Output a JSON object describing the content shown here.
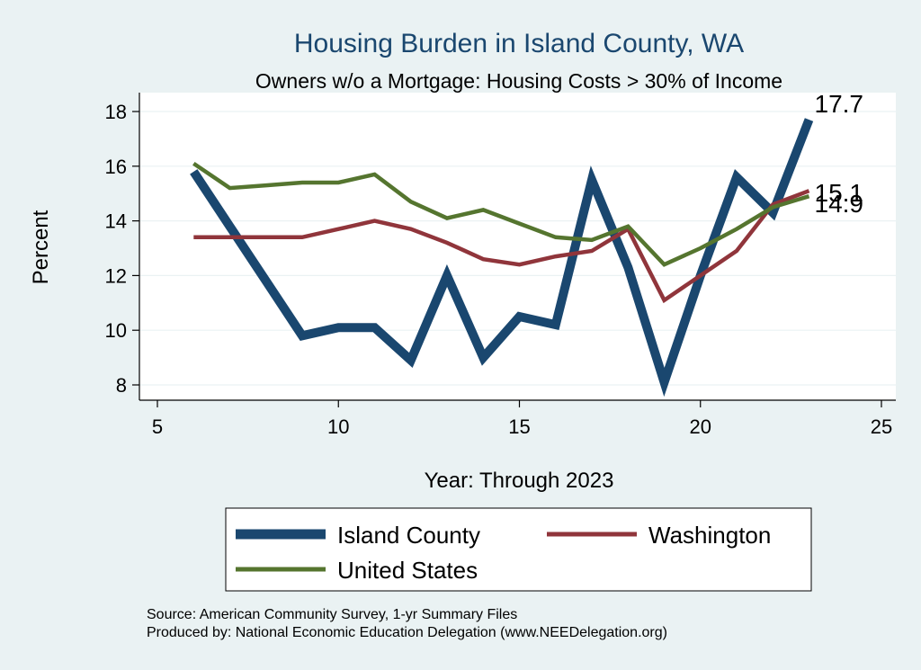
{
  "colors": {
    "background": "#eaf2f3",
    "plot_background": "#ffffff",
    "grid": "#eaf2f3",
    "title": "#1a476f"
  },
  "chart_data": {
    "type": "line",
    "title": "Housing Burden in Island County, WA",
    "subtitle": "Owners w/o a Mortgage: Housing Costs > 30% of Income",
    "xlabel": "Year: Through 2023",
    "ylabel": "Percent",
    "xlim": [
      5,
      25
    ],
    "ylim": [
      7.5,
      18.7
    ],
    "xticks": [
      5,
      10,
      15,
      20,
      25
    ],
    "yticks": [
      8,
      10,
      12,
      14,
      16,
      18
    ],
    "grid": true,
    "legend_position": "bottom",
    "series": [
      {
        "name": "Island County",
        "color": "#1a476f",
        "width": "thick",
        "x": [
          6,
          7,
          8,
          9,
          10,
          11,
          12,
          13,
          14,
          15,
          16,
          17,
          18,
          19,
          20,
          21,
          22,
          23
        ],
        "values": [
          15.8,
          13.8,
          11.8,
          9.8,
          10.1,
          10.1,
          8.9,
          12.0,
          9.0,
          10.5,
          10.2,
          15.5,
          12.3,
          8.1,
          12.0,
          15.6,
          14.3,
          17.7
        ],
        "end_label": "17.7"
      },
      {
        "name": "Washington",
        "color": "#90353b",
        "width": "medium",
        "x": [
          6,
          7,
          8,
          9,
          10,
          11,
          12,
          13,
          14,
          15,
          16,
          17,
          18,
          19,
          20,
          21,
          22,
          23
        ],
        "values": [
          13.4,
          13.4,
          13.4,
          13.4,
          13.7,
          14.0,
          13.7,
          13.2,
          12.6,
          12.4,
          12.7,
          12.9,
          13.7,
          11.1,
          12.0,
          12.9,
          14.6,
          15.1
        ],
        "end_label": "15.1"
      },
      {
        "name": "United States",
        "color": "#55752f",
        "width": "medium",
        "x": [
          6,
          7,
          8,
          9,
          10,
          11,
          12,
          13,
          14,
          15,
          16,
          17,
          18,
          19,
          20,
          21,
          22,
          23
        ],
        "values": [
          16.1,
          15.2,
          15.3,
          15.4,
          15.4,
          15.7,
          14.7,
          14.1,
          14.4,
          13.9,
          13.4,
          13.3,
          13.8,
          12.4,
          13.0,
          13.7,
          14.5,
          14.9
        ],
        "end_label": "14.9"
      }
    ]
  },
  "notes": {
    "source": "Source: American Community Survey, 1-yr Summary Files",
    "produced_by": "Produced by: National Economic Education Delegation (www.NEEDelegation.org)"
  }
}
